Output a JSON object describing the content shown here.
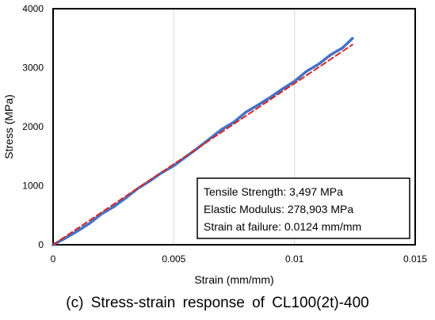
{
  "chart_data": {
    "type": "line",
    "title": "",
    "xlabel": "Strain (mm/mm)",
    "ylabel": "Stress (MPa)",
    "xlim": [
      0,
      0.015
    ],
    "ylim": [
      0,
      4000
    ],
    "xticks": [
      0,
      0.005,
      0.01,
      0.015
    ],
    "xtick_labels": [
      "0",
      "0.005",
      "0.01",
      "0.015"
    ],
    "yticks": [
      0,
      1000,
      2000,
      3000,
      4000
    ],
    "ytick_labels": [
      "0",
      "1000",
      "2000",
      "3000",
      "4000"
    ],
    "grid": "vertical",
    "series": [
      {
        "name": "",
        "style": "solid",
        "color": "#4472C4",
        "x": [
          0,
          0.0005,
          0.001,
          0.0015,
          0.002,
          0.0025,
          0.003,
          0.0035,
          0.004,
          0.0045,
          0.005,
          0.0055,
          0.006,
          0.0065,
          0.007,
          0.0075,
          0.008,
          0.0085,
          0.009,
          0.0095,
          0.01,
          0.0105,
          0.011,
          0.0115,
          0.012,
          0.0124
        ],
        "y": [
          0,
          110,
          230,
          360,
          520,
          640,
          790,
          950,
          1080,
          1220,
          1340,
          1490,
          1640,
          1800,
          1960,
          2080,
          2250,
          2370,
          2500,
          2640,
          2770,
          2940,
          3060,
          3220,
          3340,
          3497
        ]
      },
      {
        "name": "",
        "style": "dashed",
        "color": "#D62728",
        "x": [
          0,
          0.0124
        ],
        "y": [
          0,
          3390
        ]
      }
    ],
    "annotations": [
      "Tensile Strength: 3,497 MPa",
      "Elastic Modulus: 278,903 MPa",
      "Strain at failure: 0.0124 mm/mm"
    ]
  },
  "caption": "(c) Stress-strain response of CL100(2t)-400"
}
